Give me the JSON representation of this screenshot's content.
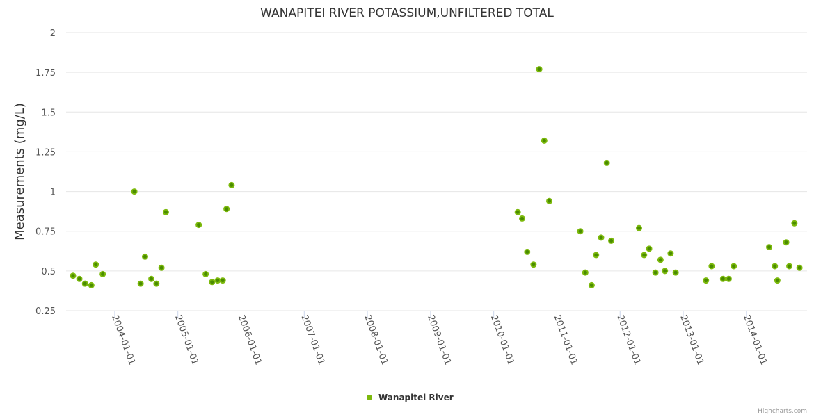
{
  "chart_data": {
    "type": "scatter",
    "title": "WANAPITEI RIVER POTASSIUM,UNFILTERED TOTAL",
    "xlabel": "",
    "ylabel": "Measurements (mg/L)",
    "xlim": [
      2003.23,
      2014.96
    ],
    "ylim": [
      0.25,
      2
    ],
    "yticks": [
      0.25,
      0.5,
      0.75,
      1,
      1.25,
      1.5,
      1.75,
      2
    ],
    "ytick_labels": [
      "0.25",
      "0.5",
      "0.75",
      "1",
      "1.25",
      "1.5",
      "1.75",
      "2"
    ],
    "xticks": [
      2004,
      2005,
      2006,
      2007,
      2008,
      2009,
      2010,
      2011,
      2012,
      2013,
      2014
    ],
    "xtick_labels": [
      "2004-01-01",
      "2005-01-01",
      "2006-01-01",
      "2007-01-01",
      "2008-01-01",
      "2009-01-01",
      "2010-01-01",
      "2011-01-01",
      "2012-01-01",
      "2013-01-01",
      "2014-01-01"
    ],
    "grid": true,
    "legend_position": "bottom-center",
    "series": [
      {
        "name": "Wanapitei River",
        "color": "#7cb90c",
        "x": [
          2003.34,
          2003.44,
          2003.53,
          2003.63,
          2003.7,
          2003.81,
          2004.31,
          2004.41,
          2004.48,
          2004.58,
          2004.66,
          2004.74,
          2004.81,
          2005.33,
          2005.44,
          2005.54,
          2005.63,
          2005.71,
          2005.77,
          2005.85,
          2010.38,
          2010.45,
          2010.53,
          2010.63,
          2010.72,
          2010.8,
          2010.88,
          2011.37,
          2011.45,
          2011.55,
          2011.62,
          2011.7,
          2011.79,
          2011.86,
          2012.3,
          2012.38,
          2012.46,
          2012.56,
          2012.64,
          2012.71,
          2012.8,
          2012.88,
          2013.36,
          2013.45,
          2013.63,
          2013.72,
          2013.8,
          2014.36,
          2014.45,
          2014.49,
          2014.63,
          2014.68,
          2014.76,
          2014.84
        ],
        "y": [
          0.47,
          0.45,
          0.42,
          0.41,
          0.54,
          0.48,
          1.0,
          0.42,
          0.59,
          0.45,
          0.42,
          0.52,
          0.87,
          0.79,
          0.48,
          0.43,
          0.44,
          0.44,
          0.89,
          1.04,
          0.87,
          0.83,
          0.62,
          0.54,
          1.77,
          1.32,
          0.94,
          0.75,
          0.49,
          0.41,
          0.6,
          0.71,
          1.18,
          0.69,
          0.77,
          0.6,
          0.64,
          0.49,
          0.57,
          0.5,
          0.61,
          0.49,
          0.44,
          0.53,
          0.45,
          0.45,
          0.53,
          0.65,
          0.53,
          0.44,
          0.68,
          0.53,
          0.8,
          0.52
        ]
      }
    ],
    "credits": "Highcharts.com"
  }
}
